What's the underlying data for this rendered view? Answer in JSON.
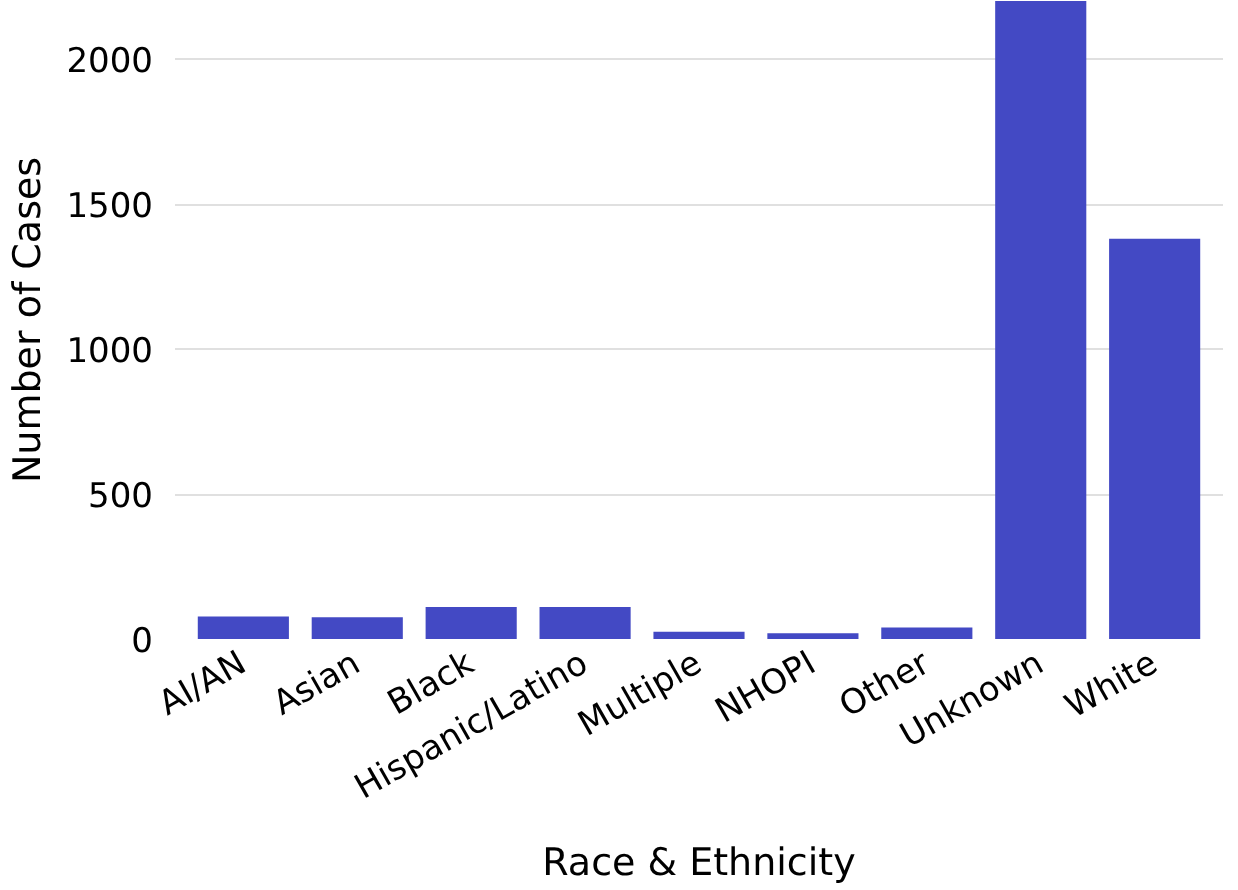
{
  "chart_data": {
    "type": "bar",
    "xlabel": "Race & Ethnicity",
    "ylabel": "Number of Cases",
    "categories": [
      "AI/AN",
      "Asian",
      "Black",
      "Hispanic/Latino",
      "Multiple",
      "NHOPI",
      "Other",
      "Unknown",
      "White"
    ],
    "values": [
      78,
      75,
      110,
      110,
      25,
      20,
      40,
      2200,
      1380
    ],
    "color": "#4349c4",
    "ylim": [
      0,
      2200
    ],
    "yticks": [
      0,
      500,
      1000,
      1500,
      2000
    ],
    "grid": "y"
  }
}
